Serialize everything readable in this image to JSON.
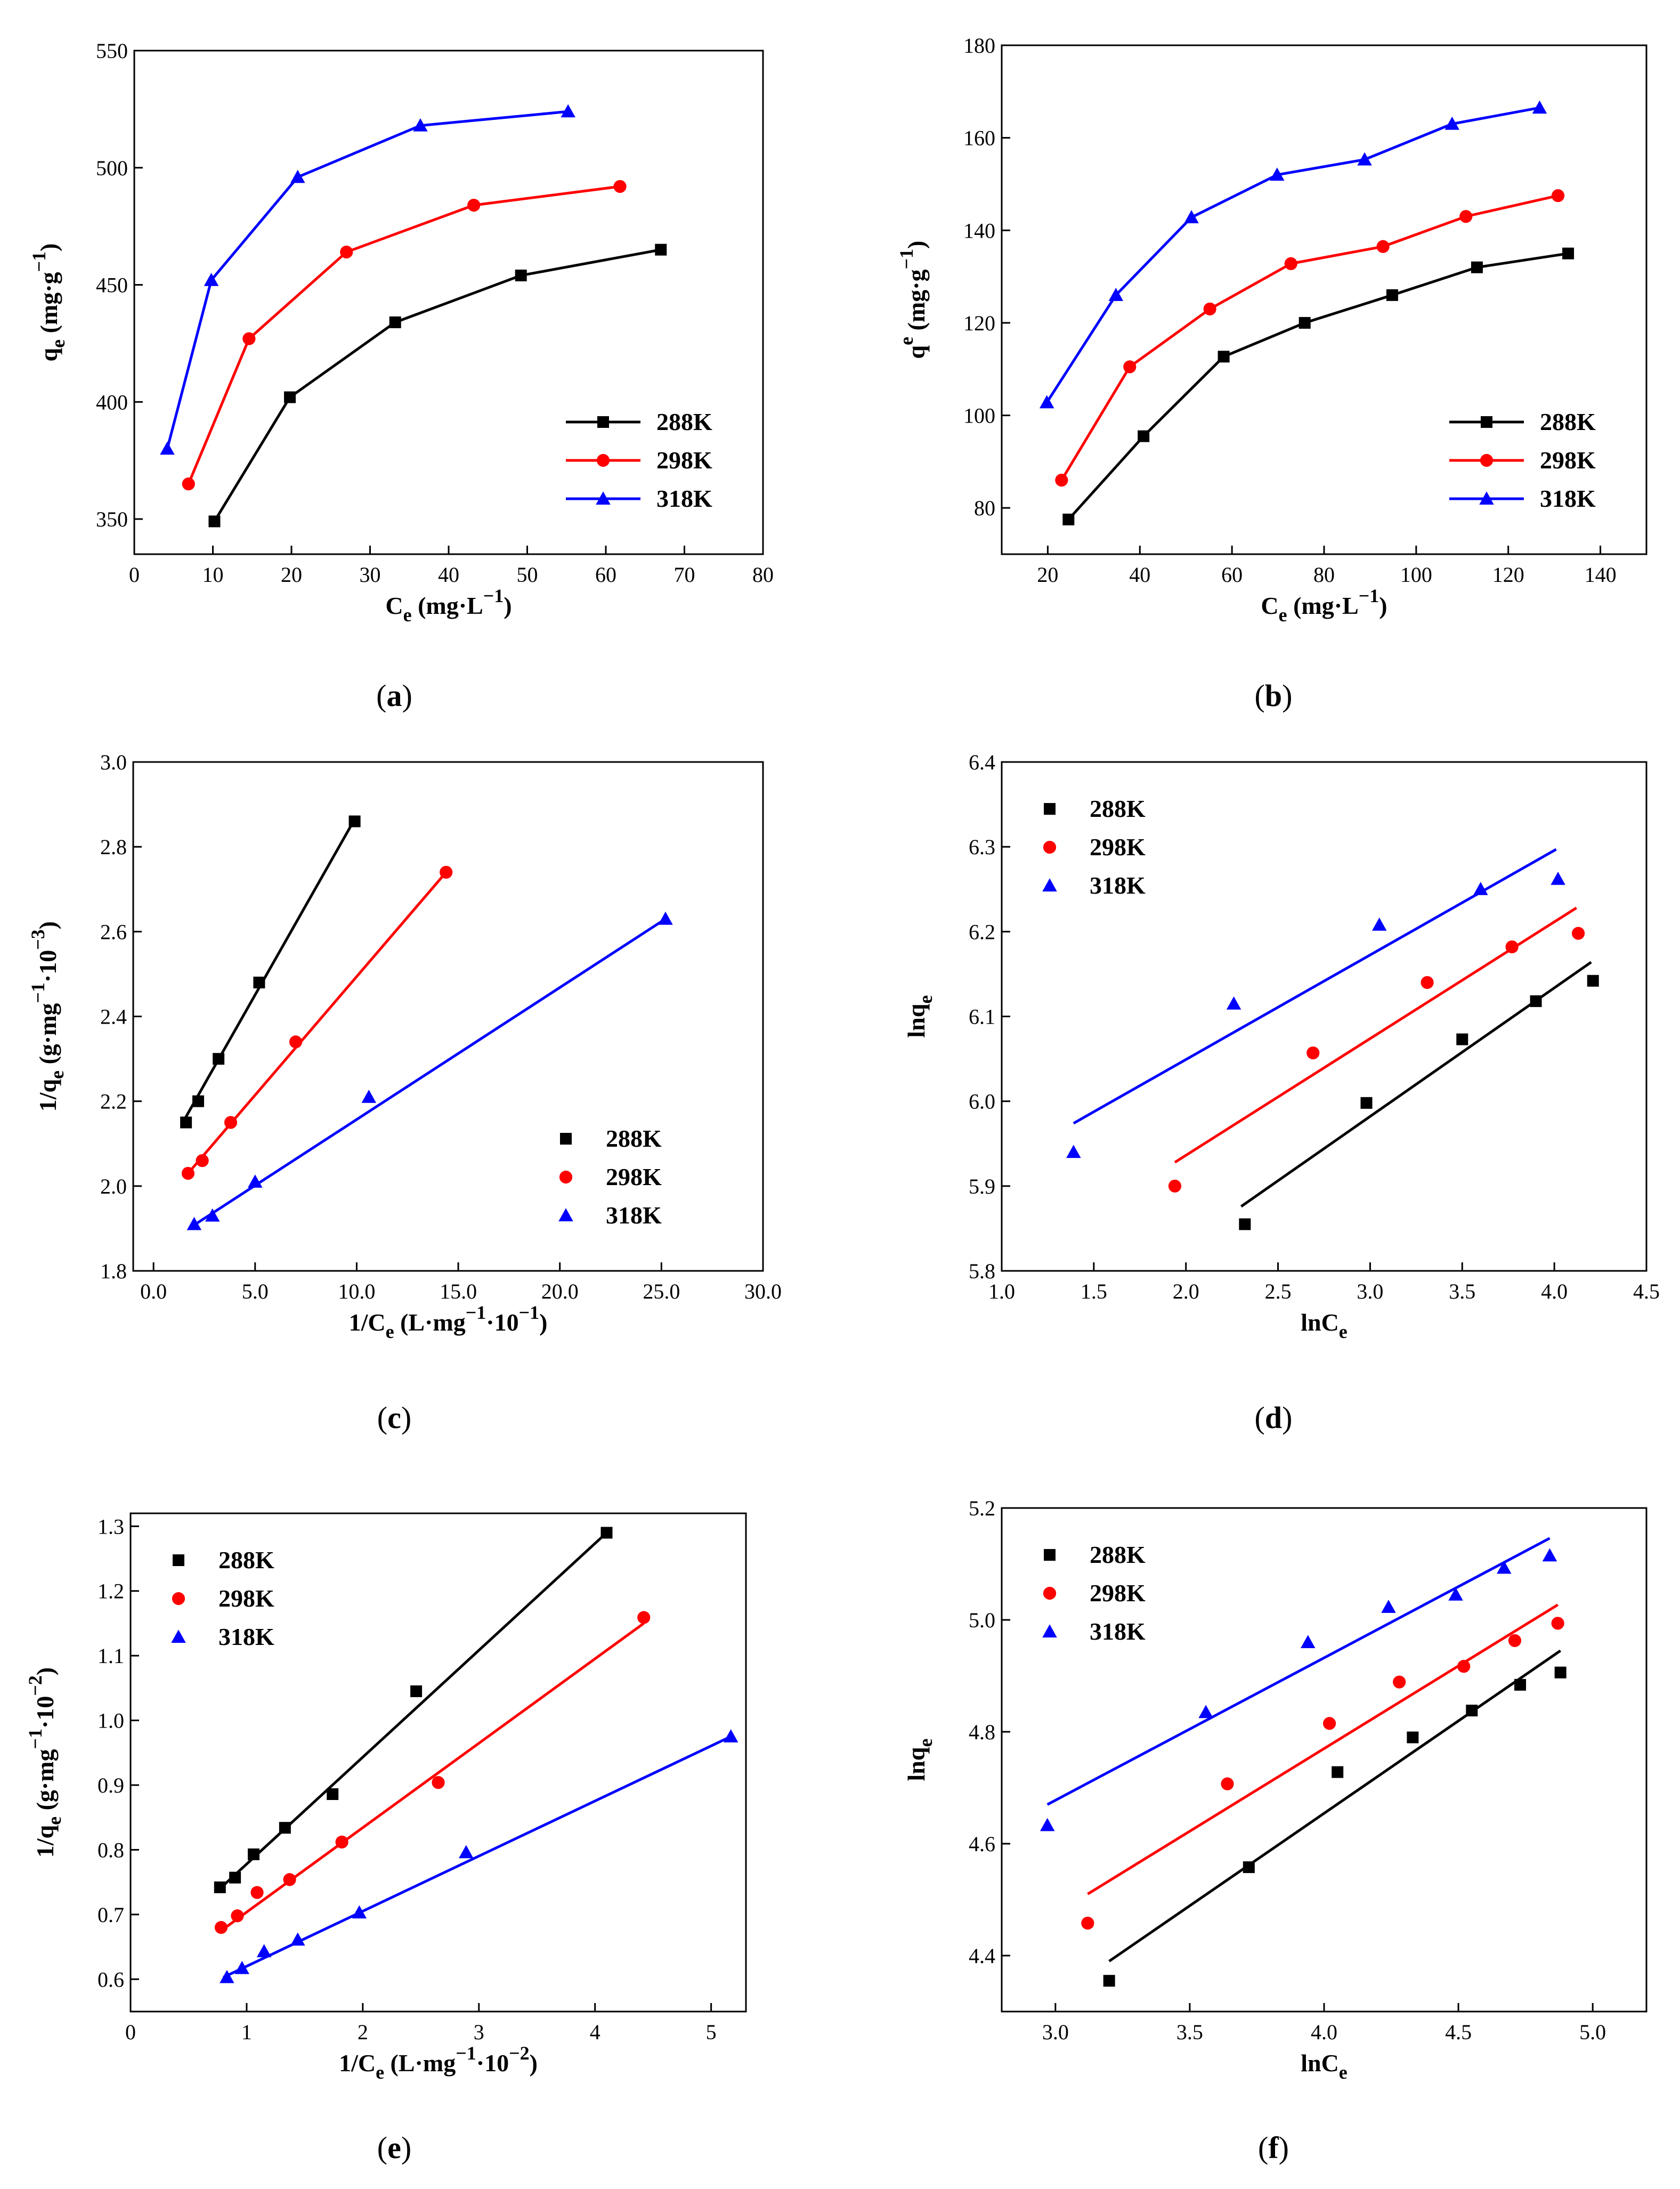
{
  "colors": {
    "288K": "#000000",
    "298K": "#ff0000",
    "318K": "#0000ff",
    "axis": "#000000"
  },
  "chart_data": [
    {
      "id": "a",
      "caption_letter": "a",
      "type": "line",
      "xlabel": "C",
      "xlabel_sub": "e",
      "xlabel_unit": "(mg·L",
      "xlabel_sup": "−1",
      "xlabel_close": ")",
      "ylabel": "q",
      "ylabel_sub": "e",
      "ylabel_unit": "(mg·g",
      "ylabel_sup": "−1",
      "ylabel_close": ")",
      "xlim": [
        0,
        80
      ],
      "ylim": [
        335,
        550
      ],
      "xticks": [
        0,
        10,
        20,
        30,
        40,
        50,
        60,
        70,
        80
      ],
      "yticks": [
        350,
        400,
        450,
        500,
        550
      ],
      "legend": "bottom-right",
      "markers_only": false,
      "series": [
        {
          "name": "288K",
          "marker": "square",
          "x": [
            10.2,
            19.8,
            33.2,
            49.2,
            67.0
          ],
          "y": [
            349,
            402,
            434,
            454,
            465
          ]
        },
        {
          "name": "298K",
          "marker": "circle",
          "x": [
            6.9,
            14.6,
            27.0,
            43.2,
            61.8
          ],
          "y": [
            365,
            427,
            464,
            484,
            492
          ]
        },
        {
          "name": "318K",
          "marker": "triangle",
          "x": [
            4.2,
            9.8,
            20.8,
            36.4,
            55.2
          ],
          "y": [
            380,
            452,
            496,
            518,
            524
          ]
        }
      ]
    },
    {
      "id": "b",
      "caption_letter": "b",
      "type": "line",
      "xlabel": "C",
      "xlabel_sub": "e",
      "xlabel_unit": "(mg·L",
      "xlabel_sup": "−1",
      "xlabel_close": ")",
      "ylabel": "q",
      "ylabel_sup_letter": "e",
      "ylabel_unit": "(mg·g",
      "ylabel_sup": "−1",
      "ylabel_close": ")",
      "xlim": [
        10,
        150
      ],
      "ylim": [
        70,
        180
      ],
      "xticks": [
        20,
        40,
        60,
        80,
        100,
        120,
        140
      ],
      "yticks": [
        80,
        100,
        120,
        140,
        160,
        180
      ],
      "legend": "bottom-right",
      "markers_only": false,
      "series": [
        {
          "name": "288K",
          "marker": "square",
          "x": [
            24.5,
            40.8,
            58.2,
            75.8,
            94.8,
            113.2,
            133.0
          ],
          "y": [
            77.5,
            95.5,
            112.7,
            120.0,
            126.0,
            132.0,
            135.0
          ]
        },
        {
          "name": "298K",
          "marker": "circle",
          "x": [
            23.0,
            37.8,
            55.2,
            72.8,
            92.8,
            110.8,
            130.8
          ],
          "y": [
            86.0,
            110.5,
            123.0,
            132.8,
            136.5,
            143.0,
            147.5
          ]
        },
        {
          "name": "318K",
          "marker": "triangle",
          "x": [
            19.8,
            34.8,
            51.2,
            69.8,
            88.8,
            107.8,
            126.8
          ],
          "y": [
            102.8,
            126.0,
            142.8,
            152.0,
            155.3,
            163.0,
            166.5
          ]
        }
      ]
    },
    {
      "id": "c",
      "caption_letter": "c",
      "type": "scatter",
      "xlabel": "1/C",
      "xlabel_sub": "e",
      "xlabel_unit": "(L·mg",
      "xlabel_sup": "−1",
      "xlabel_close": "·10",
      "xlabel_sup2": "−1",
      "xlabel_close2": ")",
      "ylabel": "1/q",
      "ylabel_sub": "e",
      "ylabel_unit": "(g·mg",
      "ylabel_sup": "−1",
      "ylabel_close": "·10",
      "ylabel_sup2": "−3",
      "ylabel_close2": ")",
      "xlim": [
        -1,
        30
      ],
      "ylim": [
        1.8,
        3.0
      ],
      "xticks": [
        0,
        5,
        10,
        15,
        20,
        25,
        30
      ],
      "yticks": [
        1.8,
        2.0,
        2.2,
        2.4,
        2.6,
        2.8,
        3.0
      ],
      "tick_decimals": 1,
      "legend": "bottom-right",
      "markers_only": true,
      "series": [
        {
          "name": "288K",
          "marker": "square",
          "x": [
            1.6,
            2.2,
            3.2,
            5.2,
            9.9
          ],
          "y": [
            2.15,
            2.2,
            2.3,
            2.48,
            2.86
          ],
          "fit": [
            [
              1.5,
              2.155
            ],
            [
              9.9,
              2.865
            ]
          ]
        },
        {
          "name": "298K",
          "marker": "circle",
          "x": [
            1.7,
            2.4,
            3.8,
            7.0,
            14.4
          ],
          "y": [
            2.03,
            2.06,
            2.15,
            2.34,
            2.74
          ],
          "fit": [
            [
              1.7,
              2.03
            ],
            [
              14.4,
              2.74
            ]
          ]
        },
        {
          "name": "318K",
          "marker": "triangle",
          "x": [
            2.0,
            2.9,
            5.0,
            10.6,
            25.2
          ],
          "y": [
            1.91,
            1.93,
            2.01,
            2.21,
            2.63
          ],
          "fit": [
            [
              1.9,
              1.905
            ],
            [
              25.2,
              2.63
            ]
          ]
        }
      ]
    },
    {
      "id": "d",
      "caption_letter": "d",
      "type": "scatter",
      "xlabel": "lnC",
      "xlabel_sub": "e",
      "ylabel": "lnq",
      "ylabel_sub": "e",
      "xlim": [
        1.0,
        4.5
      ],
      "ylim": [
        5.8,
        6.4
      ],
      "xticks": [
        1.0,
        1.5,
        2.0,
        2.5,
        3.0,
        3.5,
        4.0,
        4.5
      ],
      "yticks": [
        5.8,
        5.9,
        6.0,
        6.1,
        6.2,
        6.3,
        6.4
      ],
      "tick_decimals": 1,
      "legend": "top-left",
      "markers_only": true,
      "series": [
        {
          "name": "288K",
          "marker": "square",
          "x": [
            2.32,
            2.98,
            3.5,
            3.9,
            4.21
          ],
          "y": [
            5.855,
            5.998,
            6.073,
            6.118,
            6.142
          ],
          "fit": [
            [
              2.3,
              5.876
            ],
            [
              4.2,
              6.164
            ]
          ]
        },
        {
          "name": "298K",
          "marker": "circle",
          "x": [
            1.94,
            2.69,
            3.31,
            3.77,
            4.13
          ],
          "y": [
            5.9,
            6.057,
            6.14,
            6.182,
            6.198
          ],
          "fit": [
            [
              1.94,
              5.928
            ],
            [
              4.12,
              6.228
            ]
          ]
        },
        {
          "name": "318K",
          "marker": "triangle",
          "x": [
            1.39,
            2.26,
            3.05,
            3.6,
            4.02
          ],
          "y": [
            5.94,
            6.115,
            6.208,
            6.25,
            6.262
          ],
          "fit": [
            [
              1.39,
              5.974
            ],
            [
              4.01,
              6.297
            ]
          ]
        }
      ]
    },
    {
      "id": "e",
      "caption_letter": "e",
      "type": "scatter",
      "xlabel": "1/C",
      "xlabel_sub": "e",
      "xlabel_unit": "(L·mg",
      "xlabel_sup": "−1",
      "xlabel_close": "·10",
      "xlabel_sup2": "−2",
      "xlabel_close2": ")",
      "ylabel": "1/q",
      "ylabel_sub": "e",
      "ylabel_unit": "(g·mg",
      "ylabel_sup": "−1",
      "ylabel_close": "·10",
      "ylabel_sup2": "−2",
      "ylabel_close2": ")",
      "xlim": [
        0,
        5.3
      ],
      "ylim": [
        0.55,
        1.32
      ],
      "xticks": [
        0,
        1,
        2,
        3,
        4,
        5
      ],
      "yticks": [
        0.6,
        0.7,
        0.8,
        0.9,
        1.0,
        1.1,
        1.2,
        1.3
      ],
      "tick_decimals_y": 1,
      "legend": "top-left",
      "markers_only": true,
      "series": [
        {
          "name": "288K",
          "marker": "square",
          "x": [
            0.77,
            0.9,
            1.06,
            1.33,
            1.74,
            2.46,
            4.1
          ],
          "y": [
            0.742,
            0.757,
            0.793,
            0.834,
            0.886,
            1.045,
            1.29
          ],
          "fit": [
            [
              0.77,
              0.74
            ],
            [
              4.1,
              1.29
            ]
          ]
        },
        {
          "name": "298K",
          "marker": "circle",
          "x": [
            0.78,
            0.92,
            1.09,
            1.37,
            1.82,
            2.65,
            4.42
          ],
          "y": [
            0.68,
            0.698,
            0.734,
            0.754,
            0.812,
            0.904,
            1.159
          ],
          "fit": [
            [
              0.78,
              0.675
            ],
            [
              4.42,
              1.15
            ]
          ]
        },
        {
          "name": "318K",
          "marker": "triangle",
          "x": [
            0.83,
            0.96,
            1.15,
            1.44,
            1.97,
            2.89,
            5.17
          ],
          "y": [
            0.603,
            0.617,
            0.643,
            0.661,
            0.703,
            0.796,
            0.975
          ],
          "fit": [
            [
              0.8,
              0.603
            ],
            [
              5.17,
              0.975
            ]
          ]
        }
      ]
    },
    {
      "id": "f",
      "caption_letter": "f",
      "type": "scatter",
      "xlabel": "lnC",
      "xlabel_sub": "e",
      "ylabel": "lnq",
      "ylabel_sub": "e",
      "xlim": [
        2.8,
        5.2
      ],
      "ylim": [
        4.3,
        5.2
      ],
      "xticks": [
        3.0,
        3.5,
        4.0,
        4.5,
        5.0
      ],
      "yticks": [
        4.4,
        4.6,
        4.8,
        5.0,
        5.2
      ],
      "tick_decimals": 1,
      "legend": "top-left",
      "markers_only": true,
      "series": [
        {
          "name": "288K",
          "marker": "square",
          "x": [
            3.2,
            3.72,
            4.05,
            4.33,
            4.55,
            4.73,
            4.88
          ],
          "y": [
            4.355,
            4.558,
            4.728,
            4.79,
            4.838,
            4.884,
            4.906
          ],
          "fit": [
            [
              3.2,
              4.39
            ],
            [
              4.88,
              4.945
            ]
          ]
        },
        {
          "name": "298K",
          "marker": "circle",
          "x": [
            3.12,
            3.64,
            4.02,
            4.28,
            4.52,
            4.71,
            4.87
          ],
          "y": [
            4.458,
            4.707,
            4.815,
            4.889,
            4.917,
            4.963,
            4.994
          ],
          "fit": [
            [
              3.12,
              4.51
            ],
            [
              4.87,
              5.027
            ]
          ]
        },
        {
          "name": "318K",
          "marker": "triangle",
          "x": [
            2.97,
            3.56,
            3.94,
            4.24,
            4.49,
            4.67,
            4.84
          ],
          "y": [
            4.633,
            4.835,
            4.96,
            5.023,
            5.045,
            5.093,
            5.115
          ],
          "fit": [
            [
              2.97,
              4.67
            ],
            [
              4.84,
              5.146
            ]
          ]
        }
      ]
    }
  ]
}
